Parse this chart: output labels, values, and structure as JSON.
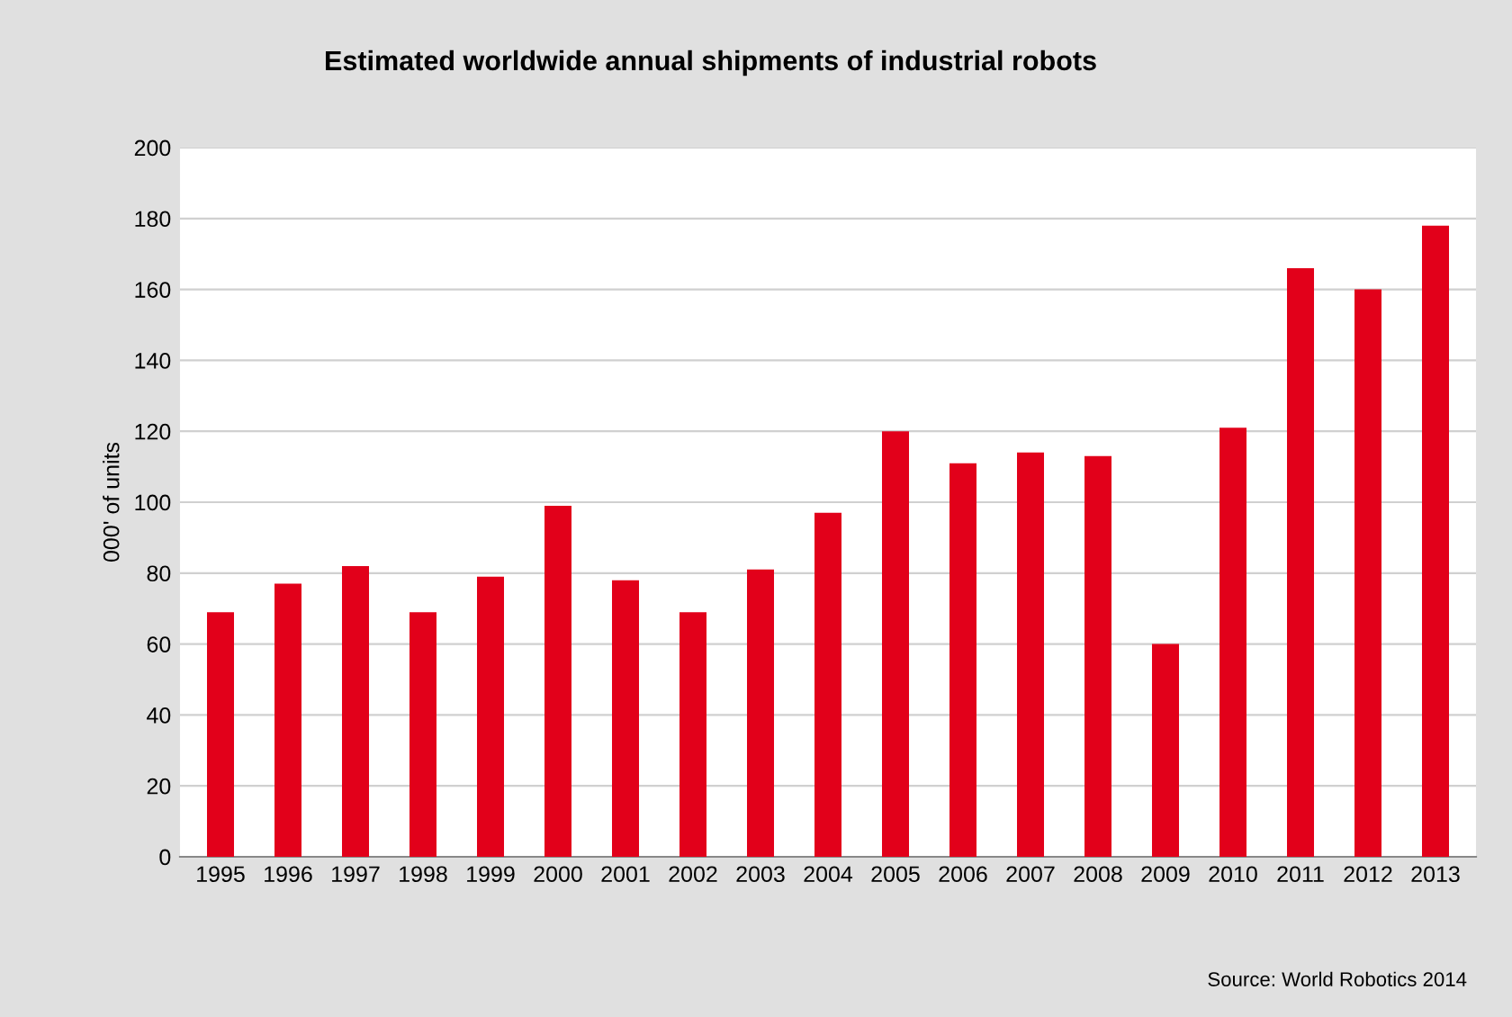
{
  "chart_data": {
    "type": "bar",
    "title": "Estimated worldwide annual shipments of industrial robots",
    "ylabel": "000' of units",
    "categories": [
      "1995",
      "1996",
      "1997",
      "1998",
      "1999",
      "2000",
      "2001",
      "2002",
      "2003",
      "2004",
      "2005",
      "2006",
      "2007",
      "2008",
      "2009",
      "2010",
      "2011",
      "2012",
      "2013"
    ],
    "values": [
      69,
      77,
      82,
      69,
      79,
      99,
      78,
      69,
      81,
      97,
      120,
      111,
      114,
      113,
      60,
      121,
      166,
      160,
      178
    ],
    "color": "#e2001a",
    "ylim": [
      0,
      200
    ],
    "yticks": [
      0,
      20,
      40,
      60,
      80,
      100,
      120,
      140,
      160,
      180,
      200
    ],
    "grid": "y",
    "legend": false,
    "annotations": [
      "Source: World Robotics 2014"
    ]
  }
}
